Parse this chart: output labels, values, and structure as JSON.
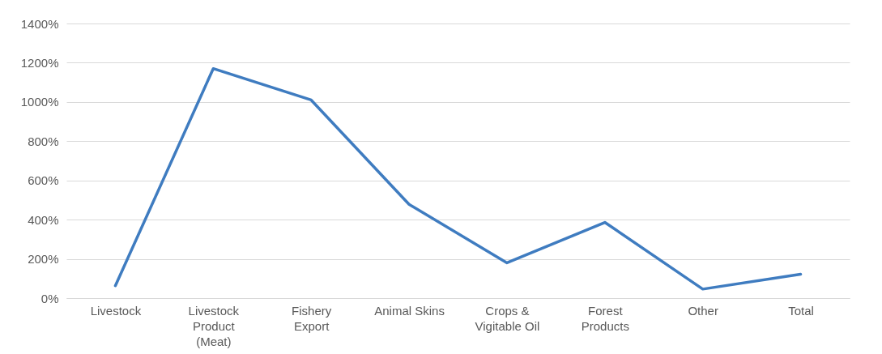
{
  "chart_data": {
    "type": "line",
    "categories": [
      "Livestock",
      "Livestock Product (Meat)",
      "Fishery Export",
      "Animal Skins",
      "Crops & Vigitable Oil",
      "Forest Products",
      "Other",
      "Total"
    ],
    "series": [
      {
        "color": "#3f7cc0",
        "values": [
          63,
          1170,
          1010,
          478,
          180,
          386,
          46,
          122
        ]
      }
    ],
    "ylim": [
      0,
      1400
    ],
    "yticks": [
      {
        "value": 0,
        "label": "0%"
      },
      {
        "value": 200,
        "label": "200%"
      },
      {
        "value": 400,
        "label": "400%"
      },
      {
        "value": 600,
        "label": "600%"
      },
      {
        "value": 800,
        "label": "800%"
      },
      {
        "value": 1000,
        "label": "1000%"
      },
      {
        "value": 1200,
        "label": "1200%"
      },
      {
        "value": 1400,
        "label": "1400%"
      }
    ],
    "grid": "y",
    "marker": "none",
    "line_style": "solid"
  }
}
